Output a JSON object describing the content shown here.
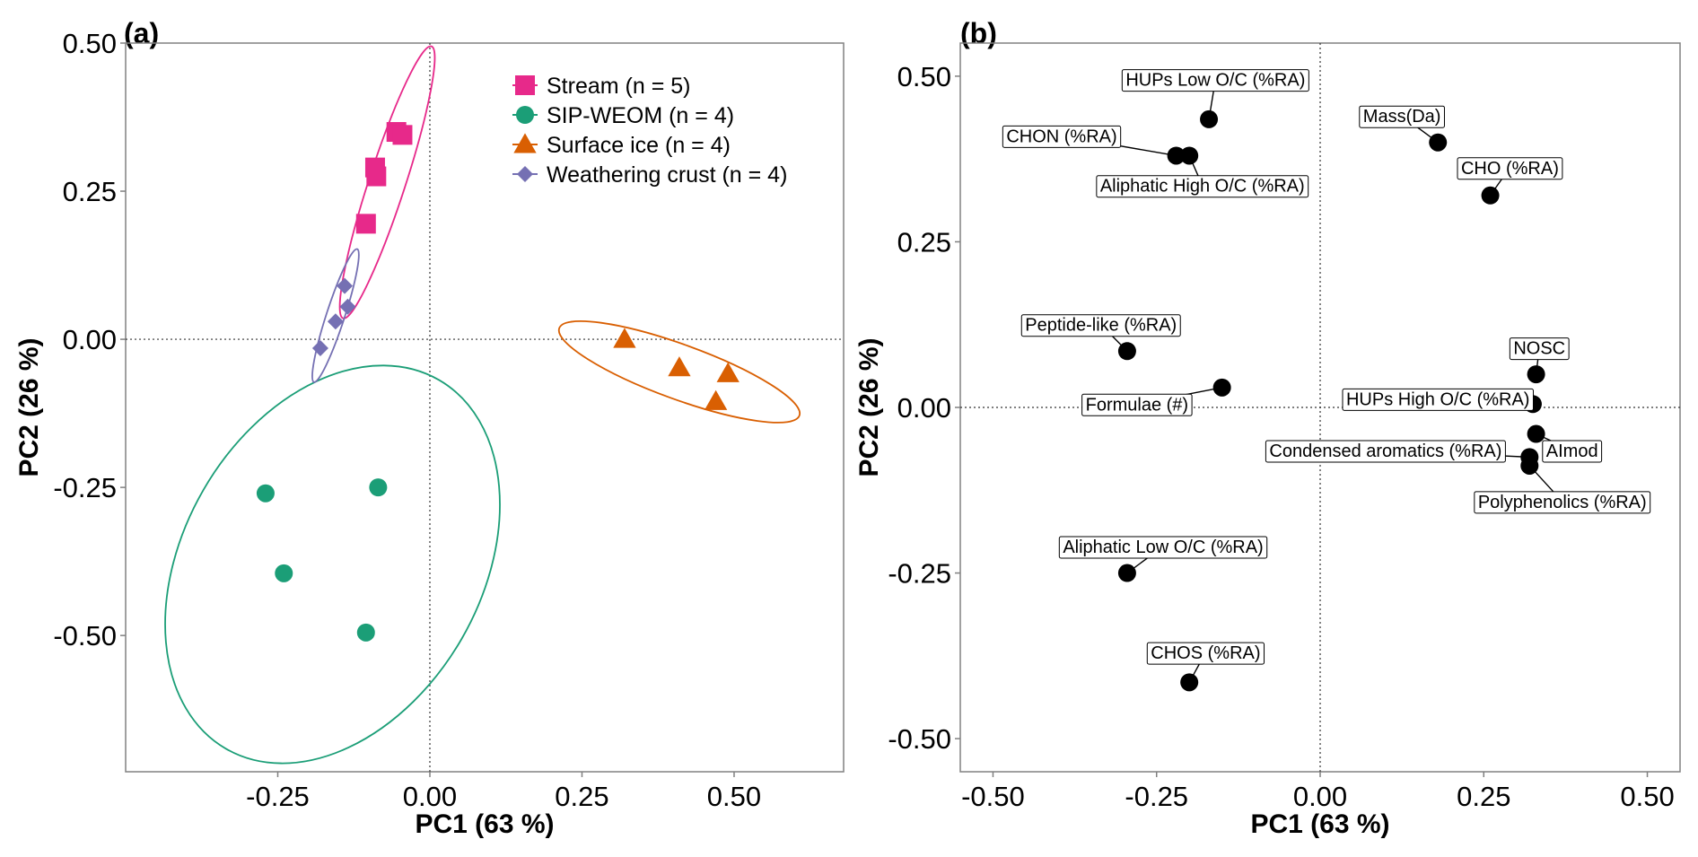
{
  "chart_data": [
    {
      "panel_label": "(a)",
      "type": "scatter",
      "xlabel": "PC1 (63 %)",
      "ylabel": "PC2 (26 %)",
      "xlim": [
        -0.5,
        0.68
      ],
      "ylim": [
        -0.73,
        0.5
      ],
      "xticks": [
        "-0.25",
        "0.00",
        "0.25",
        "0.50"
      ],
      "yticks": [
        "0.50",
        "0.25",
        "0.00",
        "-0.25",
        "-0.50"
      ],
      "xtick_values": [
        -0.25,
        0,
        0.25,
        0.5
      ],
      "ytick_values": [
        0.5,
        0.25,
        0,
        -0.25,
        -0.5
      ],
      "series": [
        {
          "name": "Stream (n = 5)",
          "marker": "square",
          "color": "#e7298a",
          "points": [
            [
              -0.055,
              0.35
            ],
            [
              -0.045,
              0.345
            ],
            [
              -0.09,
              0.29
            ],
            [
              -0.088,
              0.275
            ],
            [
              -0.105,
              0.195
            ]
          ],
          "ellipse": {
            "cx": -0.07,
            "cy": 0.265,
            "rx": 0.235,
            "ry": 0.03,
            "angle_deg": -72
          }
        },
        {
          "name": "SIP-WEOM (n = 4)",
          "marker": "circle",
          "color": "#1b9e77",
          "points": [
            [
              -0.27,
              -0.26
            ],
            [
              -0.085,
              -0.25
            ],
            [
              -0.24,
              -0.395
            ],
            [
              -0.105,
              -0.495
            ]
          ],
          "ellipse": {
            "cx": -0.16,
            "cy": -0.38,
            "rx": 0.35,
            "ry": 0.245,
            "angle_deg": -60
          }
        },
        {
          "name": "Surface ice (n = 4)",
          "marker": "triangle",
          "color": "#d95f02",
          "points": [
            [
              0.32,
              0.0
            ],
            [
              0.41,
              -0.048
            ],
            [
              0.49,
              -0.058
            ],
            [
              0.47,
              -0.105
            ]
          ],
          "ellipse": {
            "cx": 0.41,
            "cy": -0.055,
            "rx": 0.21,
            "ry": 0.045,
            "angle_deg": 20
          }
        },
        {
          "name": "Weathering crust (n = 4)",
          "marker": "diamond",
          "color": "#7570b3",
          "points": [
            [
              -0.14,
              0.09
            ],
            [
              -0.135,
              0.055
            ],
            [
              -0.155,
              0.03
            ],
            [
              -0.18,
              -0.015
            ]
          ],
          "ellipse": {
            "cx": -0.155,
            "cy": 0.04,
            "rx": 0.115,
            "ry": 0.015,
            "angle_deg": -72
          }
        }
      ]
    },
    {
      "panel_label": "(b)",
      "type": "scatter",
      "xlabel": "PC1 (63 %)",
      "ylabel": "PC2 (26 %)",
      "xlim": [
        -0.55,
        0.55
      ],
      "ylim": [
        -0.55,
        0.55
      ],
      "xticks": [
        "-0.50",
        "-0.25",
        "0.00",
        "0.25",
        "0.50"
      ],
      "yticks": [
        "0.50",
        "0.25",
        "0.00",
        "-0.25",
        "-0.50"
      ],
      "xtick_values": [
        -0.5,
        -0.25,
        0,
        0.25,
        0.5
      ],
      "ytick_values": [
        0.5,
        0.25,
        0,
        -0.25,
        -0.5
      ],
      "points": [
        {
          "label": "HUPs Low O/C (%RA)",
          "x": -0.17,
          "y": 0.435,
          "lx": -0.16,
          "ly": 0.495
        },
        {
          "label": "CHON (%RA)",
          "x": -0.22,
          "y": 0.38,
          "lx": -0.395,
          "ly": 0.41
        },
        {
          "label": "Aliphatic High O/C (%RA)",
          "x": -0.2,
          "y": 0.38,
          "lx": -0.18,
          "ly": 0.335
        },
        {
          "label": "Mass(Da)",
          "x": 0.18,
          "y": 0.4,
          "lx": 0.125,
          "ly": 0.44
        },
        {
          "label": "CHO (%RA)",
          "x": 0.26,
          "y": 0.32,
          "lx": 0.29,
          "ly": 0.362
        },
        {
          "label": "Peptide-like (%RA)",
          "x": -0.295,
          "y": 0.085,
          "lx": -0.335,
          "ly": 0.125
        },
        {
          "label": "Formulae (#)",
          "x": -0.15,
          "y": 0.03,
          "lx": -0.28,
          "ly": 0.005
        },
        {
          "label": "NOSC",
          "x": 0.33,
          "y": 0.05,
          "lx": 0.335,
          "ly": 0.09
        },
        {
          "label": "HUPs High O/C (%RA)",
          "x": 0.325,
          "y": 0.005,
          "lx": 0.18,
          "ly": 0.013
        },
        {
          "label": "AImod",
          "x": 0.33,
          "y": -0.04,
          "lx": 0.385,
          "ly": -0.065
        },
        {
          "label": "Condensed aromatics (%RA)",
          "x": 0.32,
          "y": -0.075,
          "lx": 0.1,
          "ly": -0.065
        },
        {
          "label": "Polyphenolics (%RA)",
          "x": 0.32,
          "y": -0.088,
          "lx": 0.37,
          "ly": -0.142
        },
        {
          "label": "Aliphatic Low O/C (%RA)",
          "x": -0.295,
          "y": -0.25,
          "lx": -0.24,
          "ly": -0.21
        },
        {
          "label": "CHOS (%RA)",
          "x": -0.2,
          "y": -0.415,
          "lx": -0.175,
          "ly": -0.37
        }
      ]
    }
  ]
}
